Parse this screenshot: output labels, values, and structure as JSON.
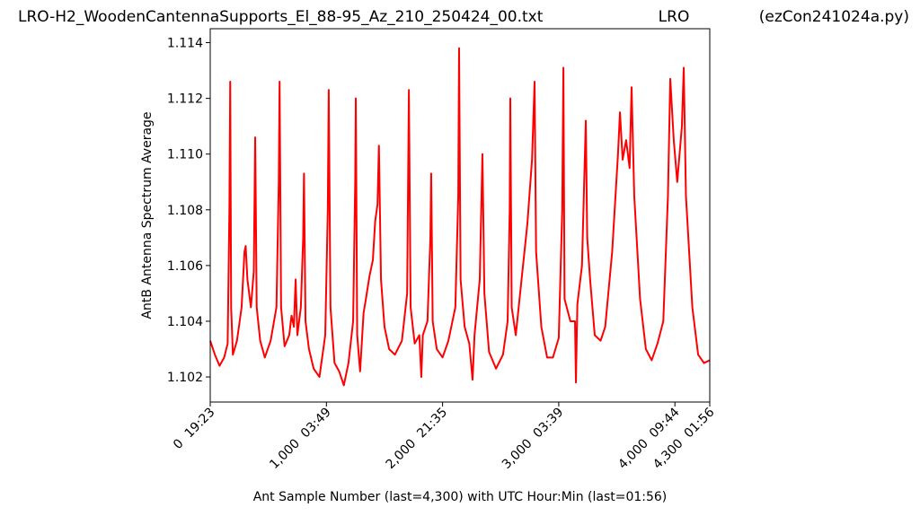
{
  "chart_data": {
    "type": "line",
    "title": "LRO-H2_WoodenCantennaSupports_El_88-95_Az_210_250424_00.txt",
    "subtitle": "LRO",
    "annotation": "(ezCon241024a.py)",
    "x_label": "Ant Sample Number (last=4,300) with UTC Hour:Min (last=01:56)",
    "y_label": "AntB Antenna Spectrum Average",
    "color": "#ff0000",
    "x": [
      0,
      40,
      80,
      120,
      150,
      165,
      172,
      180,
      195,
      230,
      270,
      295,
      305,
      320,
      350,
      375,
      387,
      400,
      430,
      470,
      520,
      570,
      590,
      597,
      610,
      640,
      680,
      700,
      720,
      735,
      750,
      780,
      800,
      807,
      820,
      850,
      890,
      940,
      990,
      1012,
      1020,
      1035,
      1070,
      1110,
      1150,
      1190,
      1230,
      1248,
      1253,
      1265,
      1290,
      1320,
      1340,
      1370,
      1400,
      1420,
      1440,
      1452,
      1470,
      1500,
      1540,
      1590,
      1650,
      1695,
      1710,
      1725,
      1760,
      1800,
      1817,
      1830,
      1870,
      1895,
      1902,
      1915,
      1950,
      2000,
      2050,
      2110,
      2135,
      2142,
      2155,
      2190,
      2230,
      2258,
      2275,
      2320,
      2343,
      2360,
      2400,
      2460,
      2520,
      2560,
      2578,
      2583,
      2595,
      2630,
      2680,
      2730,
      2770,
      2792,
      2805,
      2850,
      2900,
      2950,
      3000,
      3030,
      3040,
      3050,
      3100,
      3140,
      3148,
      3160,
      3200,
      3233,
      3245,
      3270,
      3310,
      3360,
      3400,
      3460,
      3510,
      3527,
      3550,
      3580,
      3610,
      3627,
      3650,
      3700,
      3750,
      3800,
      3850,
      3900,
      3940,
      3960,
      3990,
      4020,
      4060,
      4076,
      4095,
      4150,
      4200,
      4250,
      4300
    ],
    "values": [
      1.1033,
      1.1028,
      1.1024,
      1.1027,
      1.1032,
      1.108,
      1.1126,
      1.1045,
      1.1028,
      1.1033,
      1.1045,
      1.1065,
      1.1067,
      1.1055,
      1.1045,
      1.1058,
      1.1106,
      1.1045,
      1.1033,
      1.1027,
      1.1033,
      1.1045,
      1.109,
      1.1126,
      1.1045,
      1.1031,
      1.1035,
      1.1042,
      1.1038,
      1.1055,
      1.1035,
      1.1045,
      1.107,
      1.1093,
      1.104,
      1.103,
      1.1023,
      1.102,
      1.1035,
      1.108,
      1.1123,
      1.1045,
      1.1025,
      1.1022,
      1.1017,
      1.1025,
      1.104,
      1.109,
      1.112,
      1.1035,
      1.1022,
      1.1043,
      1.1048,
      1.1056,
      1.1062,
      1.1076,
      1.1082,
      1.1103,
      1.1055,
      1.1038,
      1.103,
      1.1028,
      1.1033,
      1.105,
      1.1123,
      1.1045,
      1.1032,
      1.1035,
      1.102,
      1.1035,
      1.104,
      1.107,
      1.1093,
      1.104,
      1.103,
      1.1027,
      1.1033,
      1.1045,
      1.1085,
      1.1138,
      1.1055,
      1.1038,
      1.1032,
      1.1019,
      1.1035,
      1.1055,
      1.11,
      1.105,
      1.1029,
      1.1023,
      1.1028,
      1.104,
      1.108,
      1.112,
      1.1045,
      1.1035,
      1.1055,
      1.1075,
      1.1098,
      1.1126,
      1.1065,
      1.1038,
      1.1027,
      1.1027,
      1.1034,
      1.108,
      1.1131,
      1.1048,
      1.104,
      1.104,
      1.1018,
      1.1046,
      1.106,
      1.1112,
      1.107,
      1.1055,
      1.1035,
      1.1033,
      1.1038,
      1.1065,
      1.11,
      1.1115,
      1.1098,
      1.1105,
      1.1095,
      1.1124,
      1.1085,
      1.1048,
      1.103,
      1.1026,
      1.1032,
      1.104,
      1.1085,
      1.1127,
      1.1105,
      1.109,
      1.111,
      1.1131,
      1.1085,
      1.1045,
      1.1028,
      1.1025,
      1.1026
    ],
    "xlim": [
      0,
      4300
    ],
    "xticks": [
      {
        "value": 0,
        "label": "0  19:23"
      },
      {
        "value": 1000,
        "label": "1,000  03:49"
      },
      {
        "value": 2000,
        "label": "2,000  21:35"
      },
      {
        "value": 3000,
        "label": "3,000  03:39"
      },
      {
        "value": 4000,
        "label": "4,000  09:44"
      },
      {
        "value": 4300,
        "label": "4,300  01:56"
      }
    ],
    "ylim": [
      1.1011,
      1.1145
    ],
    "yticks": [
      1.102,
      1.104,
      1.106,
      1.108,
      {
        "value": 1.11,
        "label": "1.110"
      },
      1.112,
      1.114
    ],
    "grid": false
  }
}
